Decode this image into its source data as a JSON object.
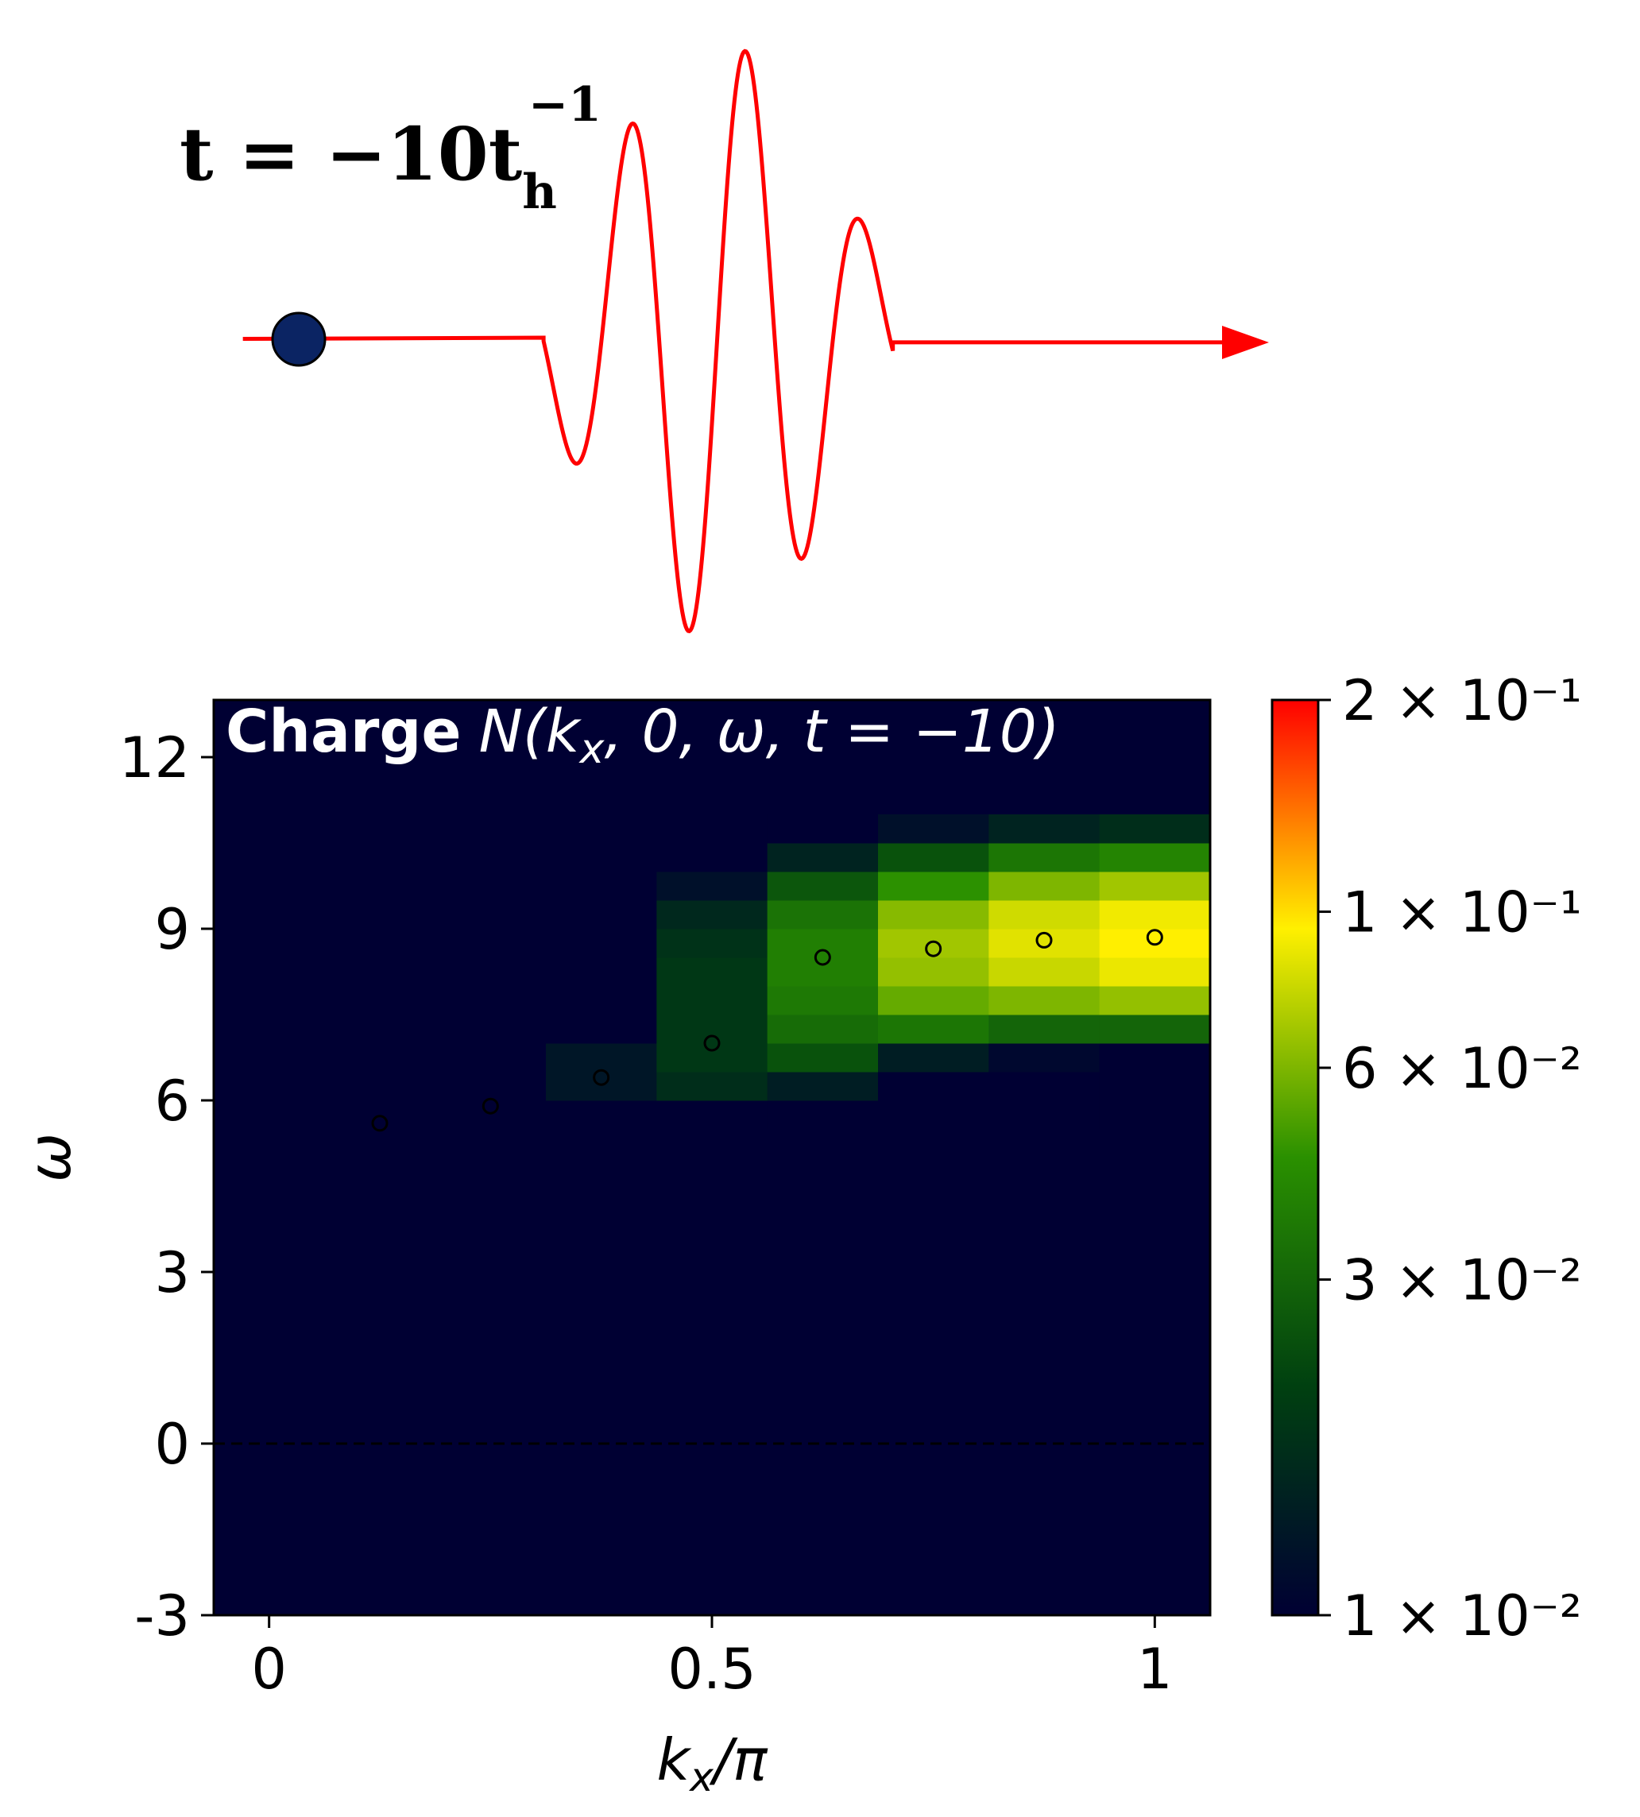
{
  "annotation": {
    "text": "t = −10t",
    "sub": "h",
    "sup": "−1"
  },
  "chart_data": {
    "type": "heatmap",
    "title": [
      "Charge",
      "N(k",
      "x",
      ", 0, ω, t = −10)"
    ],
    "x_label": [
      "k",
      "x",
      "/π"
    ],
    "y_label": "ω",
    "x": [
      0,
      0.125,
      0.25,
      0.375,
      0.5,
      0.625,
      0.75,
      0.875,
      1
    ],
    "y": [
      5.75,
      6.25,
      6.75,
      7.25,
      7.75,
      8.25,
      8.75,
      9.25,
      9.75,
      10.25,
      10.75
    ],
    "z": [
      [
        0.01,
        0.01,
        0.01,
        0.01,
        0.01,
        0.01,
        0.01,
        0.01,
        0.01
      ],
      [
        0.01,
        0.01,
        0.01,
        0.013,
        0.017,
        0.014,
        0.01,
        0.01,
        0.01
      ],
      [
        0.01,
        0.01,
        0.01,
        0.013,
        0.019,
        0.025,
        0.014,
        0.011,
        0.01
      ],
      [
        0.01,
        0.01,
        0.01,
        0.01,
        0.019,
        0.032,
        0.035,
        0.03,
        0.03
      ],
      [
        0.01,
        0.01,
        0.01,
        0.01,
        0.019,
        0.036,
        0.055,
        0.06,
        0.065
      ],
      [
        0.01,
        0.01,
        0.01,
        0.01,
        0.019,
        0.038,
        0.065,
        0.078,
        0.088
      ],
      [
        0.01,
        0.01,
        0.01,
        0.01,
        0.018,
        0.038,
        0.068,
        0.085,
        0.095
      ],
      [
        0.01,
        0.01,
        0.01,
        0.01,
        0.016,
        0.034,
        0.062,
        0.08,
        0.09
      ],
      [
        0.01,
        0.01,
        0.01,
        0.01,
        0.012,
        0.026,
        0.045,
        0.06,
        0.068
      ],
      [
        0.01,
        0.01,
        0.01,
        0.01,
        0.01,
        0.015,
        0.025,
        0.035,
        0.04
      ],
      [
        0.01,
        0.01,
        0.01,
        0.01,
        0.01,
        0.01,
        0.012,
        0.015,
        0.017
      ]
    ],
    "xlim": [
      -0.0625,
      1.0625
    ],
    "ylim": [
      -3,
      13
    ],
    "xticks": [
      0,
      0.5,
      1
    ],
    "yticks": [
      -3,
      0,
      3,
      6,
      9,
      12
    ],
    "colorbar": {
      "scale": "log",
      "clim": [
        0.01,
        0.2
      ],
      "colormap": [
        "#000033",
        "#004010",
        "#2a9000",
        "#fff000",
        "#ff0000"
      ],
      "ticks": [
        {
          "value": 0.01,
          "label": "1 × 10⁻²"
        },
        {
          "value": 0.03,
          "label": "3 × 10⁻²"
        },
        {
          "value": 0.06,
          "label": "6 × 10⁻²"
        },
        {
          "value": 0.1,
          "label": "1 × 10⁻¹"
        },
        {
          "value": 0.2,
          "label": "2 × 10⁻¹"
        }
      ]
    },
    "scatter": {
      "x": [
        0.125,
        0.25,
        0.375,
        0.5,
        0.625,
        0.75,
        0.875,
        1
      ],
      "y": [
        5.6,
        5.9,
        6.4,
        7.0,
        8.5,
        8.65,
        8.8,
        8.85
      ],
      "color": "#000000"
    },
    "hlines": [
      0
    ]
  }
}
